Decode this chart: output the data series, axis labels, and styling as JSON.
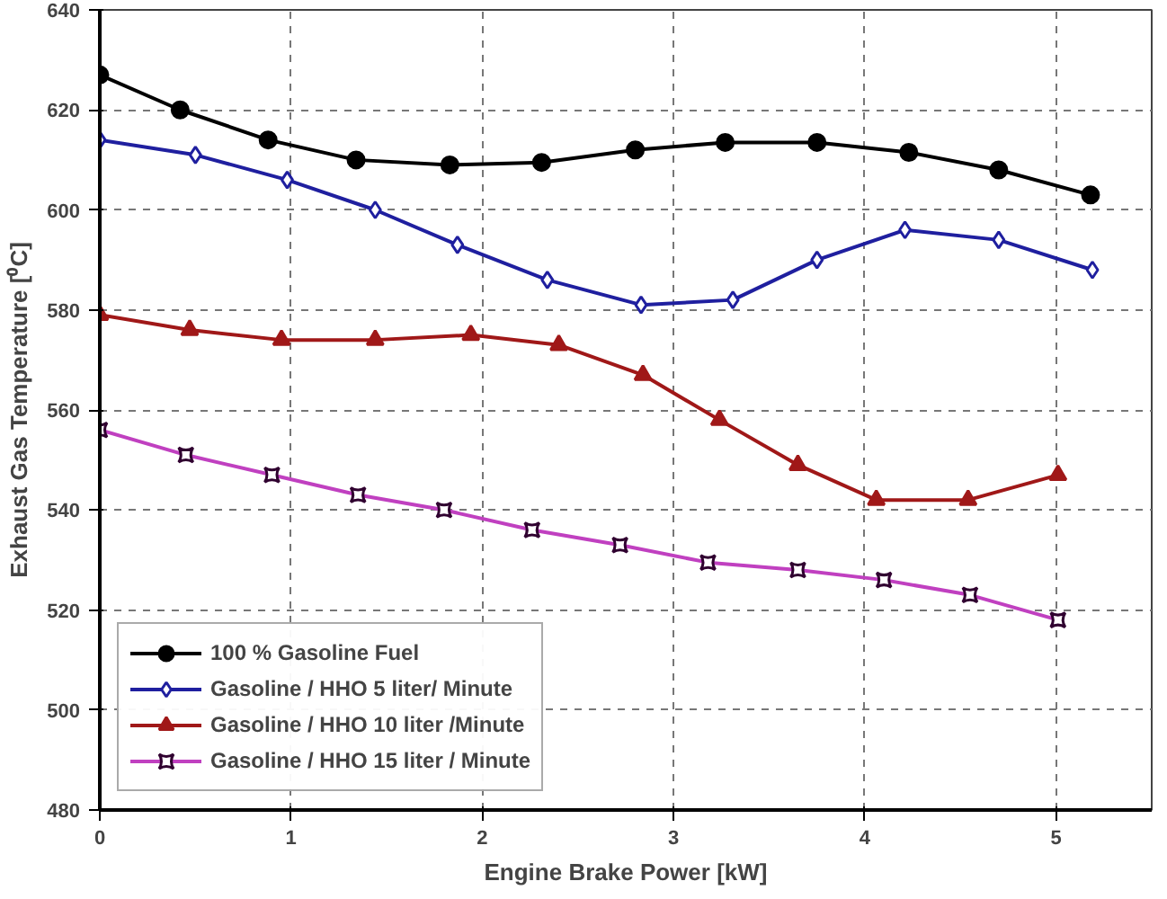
{
  "chart_data": {
    "type": "line",
    "xlabel": "Engine Brake Power [kW]",
    "ylabel": "Exhaust Gas Temperature [⁰C]",
    "xlim": [
      0,
      5.5
    ],
    "xticks": [
      0,
      1,
      2,
      3,
      4,
      5
    ],
    "ylim": [
      480,
      640
    ],
    "yticks": [
      480,
      500,
      520,
      540,
      560,
      580,
      600,
      620,
      640
    ],
    "grid": true,
    "legend": "bottom left",
    "line_style": "solid",
    "series": [
      {
        "name": "100 % Gasoline Fuel",
        "color": "#000000",
        "marker": "circle",
        "x": [
          0,
          0.42,
          0.88,
          1.34,
          1.83,
          2.31,
          2.8,
          3.27,
          3.75,
          4.23,
          4.7,
          5.18
        ],
        "values": [
          627,
          620,
          614,
          610,
          609,
          609.5,
          612,
          613.5,
          613.5,
          611.5,
          608,
          603
        ]
      },
      {
        "name": "Gasoline / HHO 5 liter/ Minute",
        "color": "#1f1f9f",
        "marker": "diamond",
        "x": [
          0,
          0.5,
          0.98,
          1.44,
          1.87,
          2.34,
          2.83,
          3.31,
          3.75,
          4.21,
          4.7,
          5.19
        ],
        "values": [
          614,
          611,
          606,
          600,
          593,
          586,
          581,
          582,
          590,
          596,
          594,
          588
        ]
      },
      {
        "name": "Gasoline / HHO 10 liter /Minute",
        "color": "#a01818",
        "marker": "triangle",
        "x": [
          0,
          0.47,
          0.95,
          1.44,
          1.94,
          2.4,
          2.84,
          3.24,
          3.65,
          4.06,
          4.54,
          5.01
        ],
        "values": [
          579,
          576,
          574,
          574,
          575,
          573,
          567,
          558,
          549,
          542,
          542,
          547
        ]
      },
      {
        "name": "Gasoline / HHO 15 liter / Minute",
        "color": "#c040c0",
        "marker": "square",
        "x": [
          0,
          0.45,
          0.9,
          1.35,
          1.8,
          2.26,
          2.72,
          3.18,
          3.65,
          4.1,
          4.55,
          5.01
        ],
        "values": [
          556,
          551,
          547,
          543,
          540,
          536,
          533,
          529.5,
          528,
          526,
          523,
          518
        ]
      }
    ]
  }
}
